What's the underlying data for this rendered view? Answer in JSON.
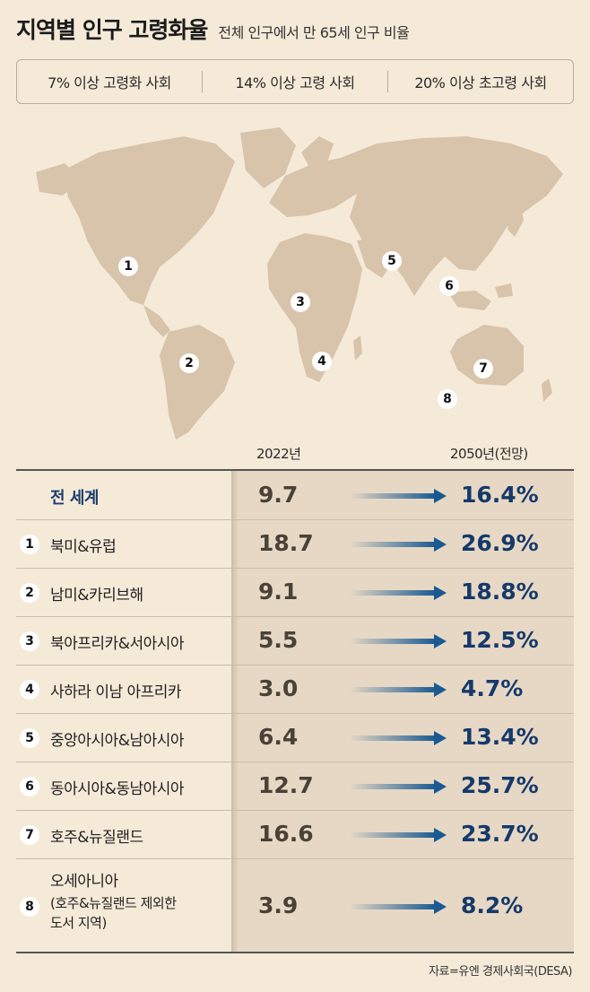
{
  "title": "지역별 인구 고령화율",
  "subtitle": "전체 인구에서 만 65세 인구 비율",
  "legend": [
    "7% 이상  고령화 사회",
    "14% 이상  고령 사회",
    "20% 이상 초고령 사회"
  ],
  "colors": {
    "background": "#f5ead8",
    "land": "#d8c3ab",
    "value_panel": "#e6d8c5",
    "value_2050": "#16396a",
    "value_2022": "#4a4237",
    "arrow_end": "#1a5a92"
  },
  "map_markers": [
    "1",
    "2",
    "3",
    "4",
    "5",
    "6",
    "7",
    "8"
  ],
  "chart_data": {
    "type": "table",
    "columns": [
      "2022년",
      "2050년(전망)"
    ],
    "rows": [
      {
        "num": "",
        "label": [
          "전 세계"
        ],
        "v2022": "9.7",
        "v2050": "16.4%"
      },
      {
        "num": "1",
        "label": [
          "북미&유럽"
        ],
        "v2022": "18.7",
        "v2050": "26.9%"
      },
      {
        "num": "2",
        "label": [
          "남미&카리브해"
        ],
        "v2022": "9.1",
        "v2050": "18.8%"
      },
      {
        "num": "3",
        "label": [
          "북아프리카&서아시아"
        ],
        "v2022": "5.5",
        "v2050": "12.5%"
      },
      {
        "num": "4",
        "label": [
          "사하라 이남 아프리카"
        ],
        "v2022": "3.0",
        "v2050": "4.7%"
      },
      {
        "num": "5",
        "label": [
          "중앙아시아&남아시아"
        ],
        "v2022": "6.4",
        "v2050": "13.4%"
      },
      {
        "num": "6",
        "label": [
          "동아시아&동남아시아"
        ],
        "v2022": "12.7",
        "v2050": "25.7%"
      },
      {
        "num": "7",
        "label": [
          "호주&뉴질랜드"
        ],
        "v2022": "16.6",
        "v2050": "23.7%"
      },
      {
        "num": "8",
        "label": [
          "오세아니아",
          "(호주&뉴질랜드 제외한",
          "도서 지역)"
        ],
        "v2022": "3.9",
        "v2050": "8.2%"
      }
    ]
  },
  "source": "자료=유엔 경제사회국(DESA)"
}
